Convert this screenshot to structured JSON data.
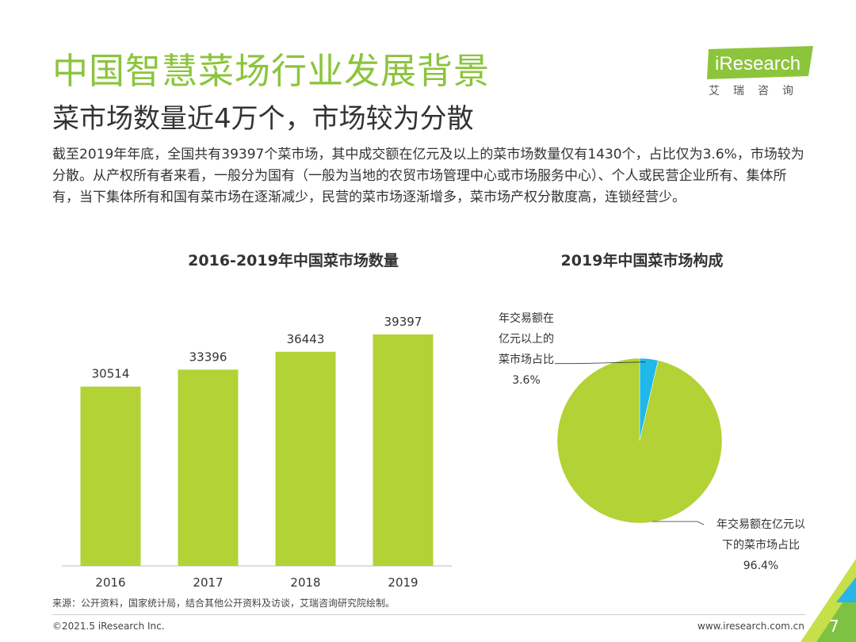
{
  "header": {
    "title": "中国智慧菜场行业发展背景",
    "subtitle": "菜市场数量近4万个，市场较为分散",
    "summary": "截至2019年年底，全国共有39397个菜市场，其中成交额在亿元及以上的菜市场数量仅有1430个，占比仅为3.6%，市场较为分散。从产权所有者来看，一般分为国有（一般为当地的农贸市场管理中心或市场服务中心）、个人或民营企业所有、集体所有，当下集体所有和国有菜市场在逐渐减少，民营的菜市场逐渐增多，菜市场产权分散度高，连锁经营少。"
  },
  "logo": {
    "brand": "iResearch",
    "brand_cn": "艾瑞咨询"
  },
  "colors": {
    "accent": "#8cc43c",
    "bar": "#b2d235",
    "pie_major": "#b2d235",
    "pie_minor": "#1fb8e8",
    "corner_dark": "#7dc242",
    "corner_light": "#c6e04a",
    "corner_blue": "#2ab5e6"
  },
  "chart_data": [
    {
      "type": "bar",
      "title": "2016-2019年中国菜市场数量",
      "categories": [
        "2016",
        "2017",
        "2018",
        "2019"
      ],
      "values": [
        30514,
        33396,
        36443,
        39397
      ],
      "data_labels": [
        "30514",
        "33396",
        "36443",
        "39397"
      ],
      "xlabel": "",
      "ylabel": "",
      "ylim": [
        0,
        41000
      ]
    },
    {
      "type": "pie",
      "title": "2019年中国菜市场构成",
      "slices": [
        {
          "label_lines": [
            "年交易额在",
            "亿元以上的",
            "菜市场占比"
          ],
          "percent_label": "3.6%",
          "value": 3.6
        },
        {
          "label_lines": [
            "年交易额在亿元以",
            "下的菜市场占比"
          ],
          "percent_label": "96.4%",
          "value": 96.4
        }
      ]
    }
  ],
  "footer": {
    "source": "来源：公开资料，国家统计局，结合其他公开资料及访谈，艾瑞咨询研究院绘制。",
    "copyright": "©2021.5 iResearch Inc.",
    "website": "www.iresearch.com.cn",
    "page_number": "7"
  }
}
